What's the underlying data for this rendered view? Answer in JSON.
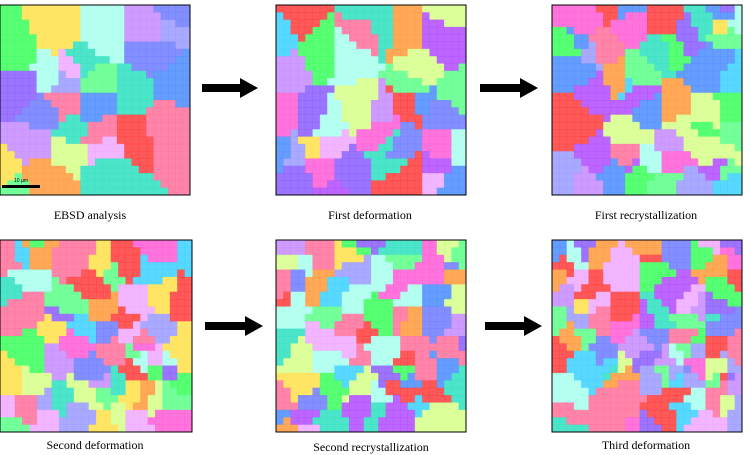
{
  "panels": [
    {
      "caption": "EBSD analysis",
      "scale_label": "10 µm"
    },
    {
      "caption": "First deformation"
    },
    {
      "caption": "First recrystallization"
    },
    {
      "caption": "Second deformation"
    },
    {
      "caption": "Second recrystallization"
    },
    {
      "caption": "Third deformation"
    }
  ]
}
